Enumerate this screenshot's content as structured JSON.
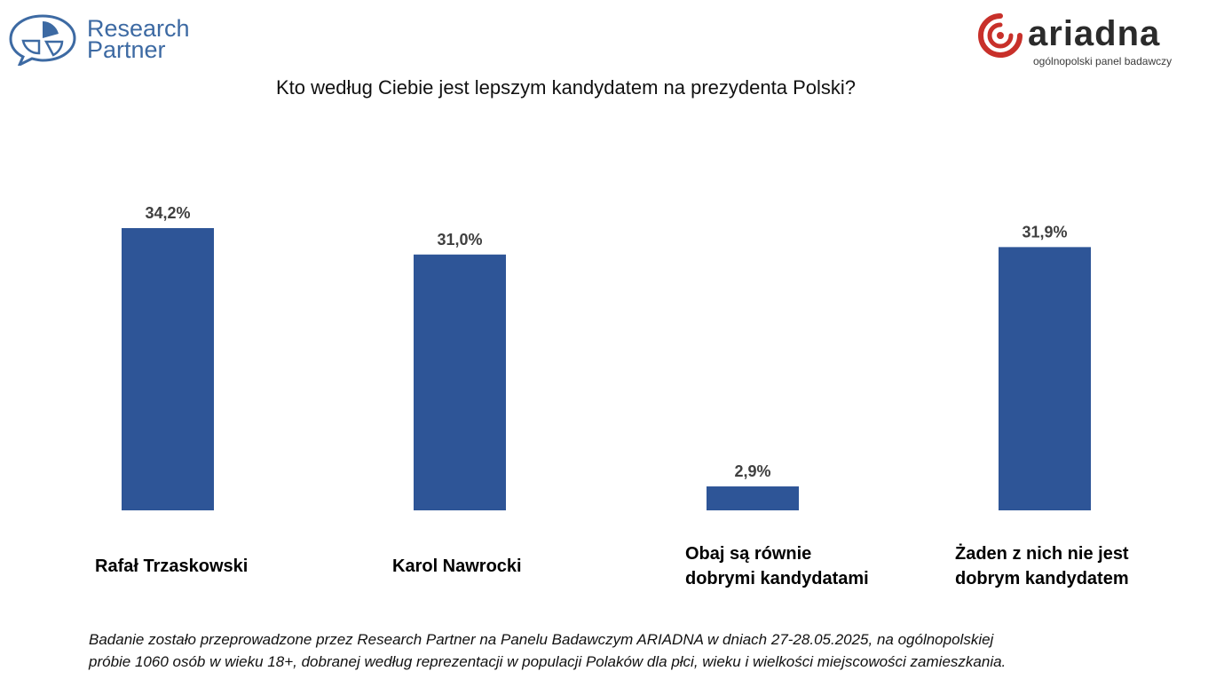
{
  "logos": {
    "research_partner": {
      "line1": "Research",
      "line2": "Partner",
      "color": "#3d6aa3",
      "icon": "speech-bubble-pie-icon"
    },
    "ariadna": {
      "name": "ariadna",
      "tagline": "ogólnopolski panel badawczy",
      "accent": "#c8302a",
      "icon": "spiral-logo-icon"
    }
  },
  "footnote": {
    "line1": "Badanie zostało przeprowadzone przez Research Partner na Panelu Badawczym ARIADNA w dniach 27-28.05.2025, na ogólnopolskiej",
    "line2": "próbie 1060 osób w wieku 18+, dobranej według reprezentacji w populacji Polaków dla płci, wieku i wielkości miejscowości zamieszkania."
  },
  "chart_data": {
    "type": "bar",
    "title": "Kto według Ciebie jest lepszym kandydatem na prezydenta Polski?",
    "categories": [
      [
        "Rafał Trzaskowski"
      ],
      [
        "Karol Nawrocki"
      ],
      [
        "Obaj są równie",
        "dobrymi kandydatami"
      ],
      [
        "Żaden z nich nie jest",
        "dobrym kandydatem"
      ]
    ],
    "values": [
      34.2,
      31.0,
      2.9,
      31.9
    ],
    "value_labels": [
      "34,2%",
      "31,0%",
      "2,9%",
      "31,9%"
    ],
    "unit": "%",
    "ylim": [
      0,
      34.2
    ],
    "grid": false,
    "legend": "none",
    "bar_color": "#2e5597"
  }
}
